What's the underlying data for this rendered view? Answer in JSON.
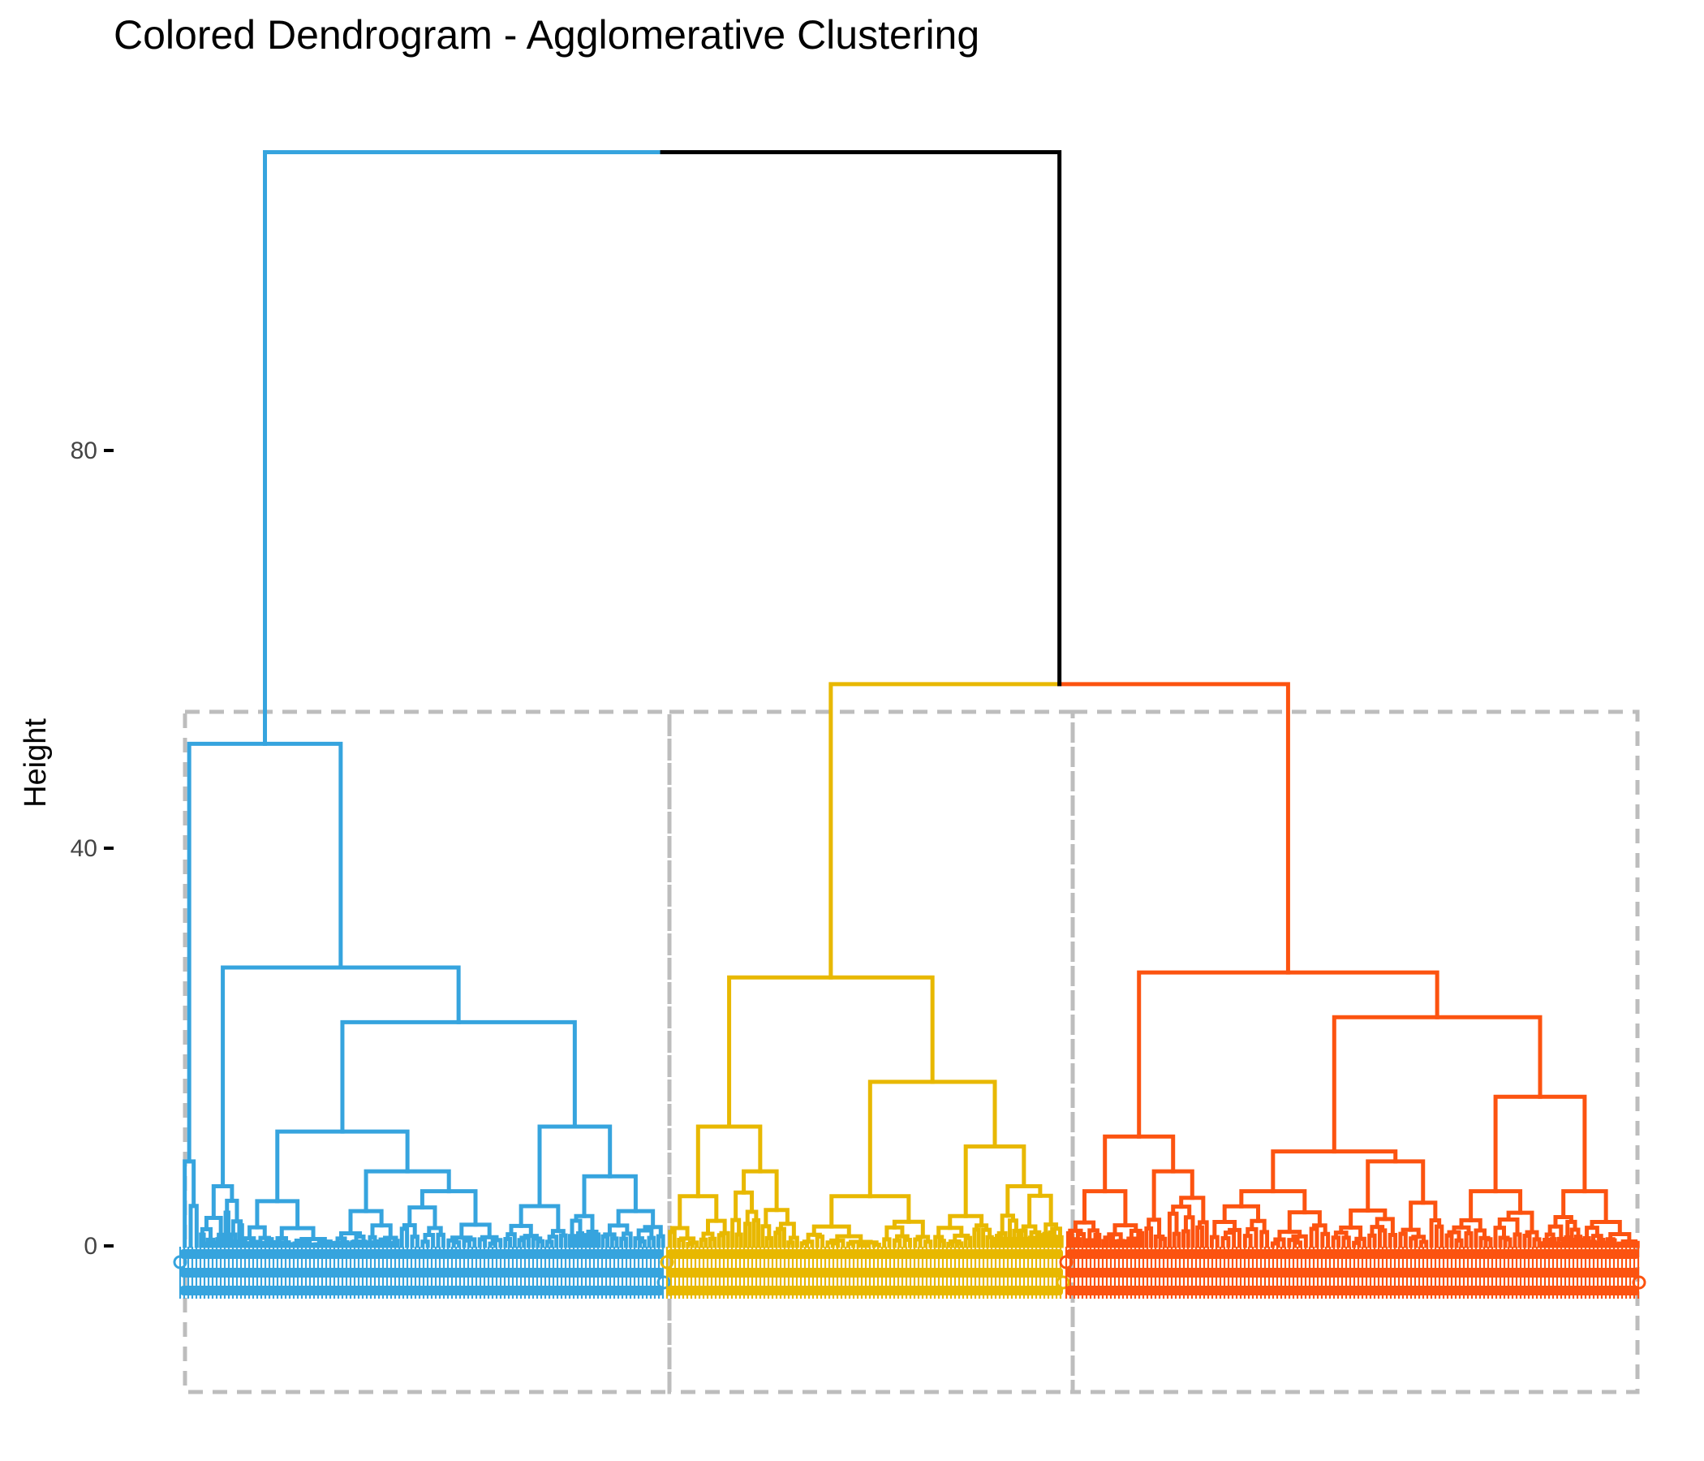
{
  "chart_data": {
    "type": "dendrogram",
    "title": "Colored Dendrogram - Agglomerative Clustering",
    "xlabel": "",
    "ylabel": "Height",
    "yticks": [
      0,
      40,
      80
    ],
    "ylim": [
      -15,
      112
    ],
    "grid": false,
    "legend": "none",
    "k_clusters": 3,
    "colors": {
      "cluster_1": "#36A4DE",
      "cluster_2": "#E8B800",
      "cluster_3": "#FC5310",
      "root": "#000000",
      "cluster_box": "#BDBDBD"
    },
    "merge_heights": {
      "root": 110,
      "cluster_2_3": 56.5,
      "cluster_1": 50.5,
      "cluster_1_sub": 28,
      "cluster_2_sub": 27,
      "cluster_3_sub": 27.5
    },
    "cluster_sizes": [
      112,
      94,
      132
    ]
  }
}
